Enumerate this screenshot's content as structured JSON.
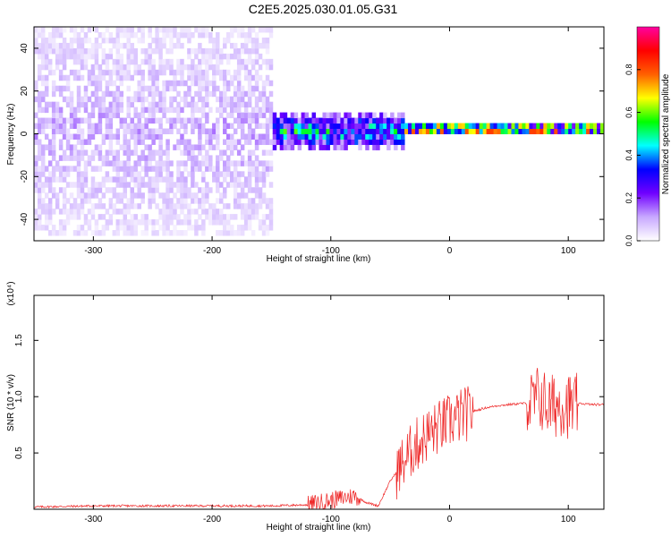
{
  "title": "C2E5.2025.030.01.05.G31",
  "chart_data": [
    {
      "type": "heatmap",
      "xlabel": "Height of straight line (km)",
      "ylabel": "Frequency (Hz)",
      "xlim": [
        -350,
        130
      ],
      "ylim": [
        -50,
        50
      ],
      "xticks": [
        -300,
        -200,
        -100,
        0,
        100
      ],
      "yticks": [
        -40,
        -20,
        0,
        20,
        40
      ],
      "colorbar": {
        "label": "Normalized spectral amplitude",
        "range": [
          0,
          1
        ],
        "ticks": [
          "0.0",
          "0.2",
          "0.4",
          "0.6",
          "0.8"
        ],
        "colors": [
          "#ffffff",
          "#c8a8ff",
          "#7000ff",
          "#0000ff",
          "#00ffff",
          "#00ff00",
          "#ffff00",
          "#ff6000",
          "#ff0000",
          "#ff00a0"
        ]
      },
      "bands": [
        {
          "x_range": [
            -350,
            -150
          ],
          "freq_center": 0,
          "freq_spread": 50,
          "amplitude": 0.1
        },
        {
          "x_range": [
            -150,
            -40
          ],
          "freq_center": 0,
          "freq_spread": 8,
          "amplitude": 0.4
        },
        {
          "x_range": [
            -40,
            130
          ],
          "freq_center": 1,
          "freq_spread": 3,
          "amplitude": 0.7
        }
      ]
    },
    {
      "type": "line",
      "xlabel": "Height of straight line (km)",
      "ylabel": "SNR (10 * v/v)",
      "multiplier": "(x10⁴)",
      "xlim": [
        -350,
        130
      ],
      "ylim": [
        0,
        1.9
      ],
      "xticks": [
        -300,
        -200,
        -100,
        0,
        100
      ],
      "yticks": [
        "0.5",
        "1.0",
        "1.5"
      ],
      "series": [
        {
          "color": "#ee2222",
          "x": [
            -350,
            -300,
            -250,
            -200,
            -150,
            -120,
            -100,
            -80,
            -70,
            -60,
            -50,
            -40,
            -30,
            -20,
            -10,
            0,
            10,
            20,
            30,
            40,
            50,
            60,
            70,
            75,
            80,
            85,
            90,
            95,
            100,
            105,
            110,
            120,
            130
          ],
          "y": [
            0.02,
            0.03,
            0.03,
            0.03,
            0.03,
            0.04,
            0.08,
            0.12,
            0.06,
            0.03,
            0.25,
            0.4,
            0.55,
            0.65,
            0.72,
            0.78,
            0.83,
            0.87,
            0.9,
            0.92,
            0.93,
            0.94,
            0.94,
            1.0,
            0.95,
            0.9,
            0.93,
            0.95,
            0.92,
            0.9,
            0.94,
            0.93,
            0.93
          ]
        }
      ]
    }
  ]
}
